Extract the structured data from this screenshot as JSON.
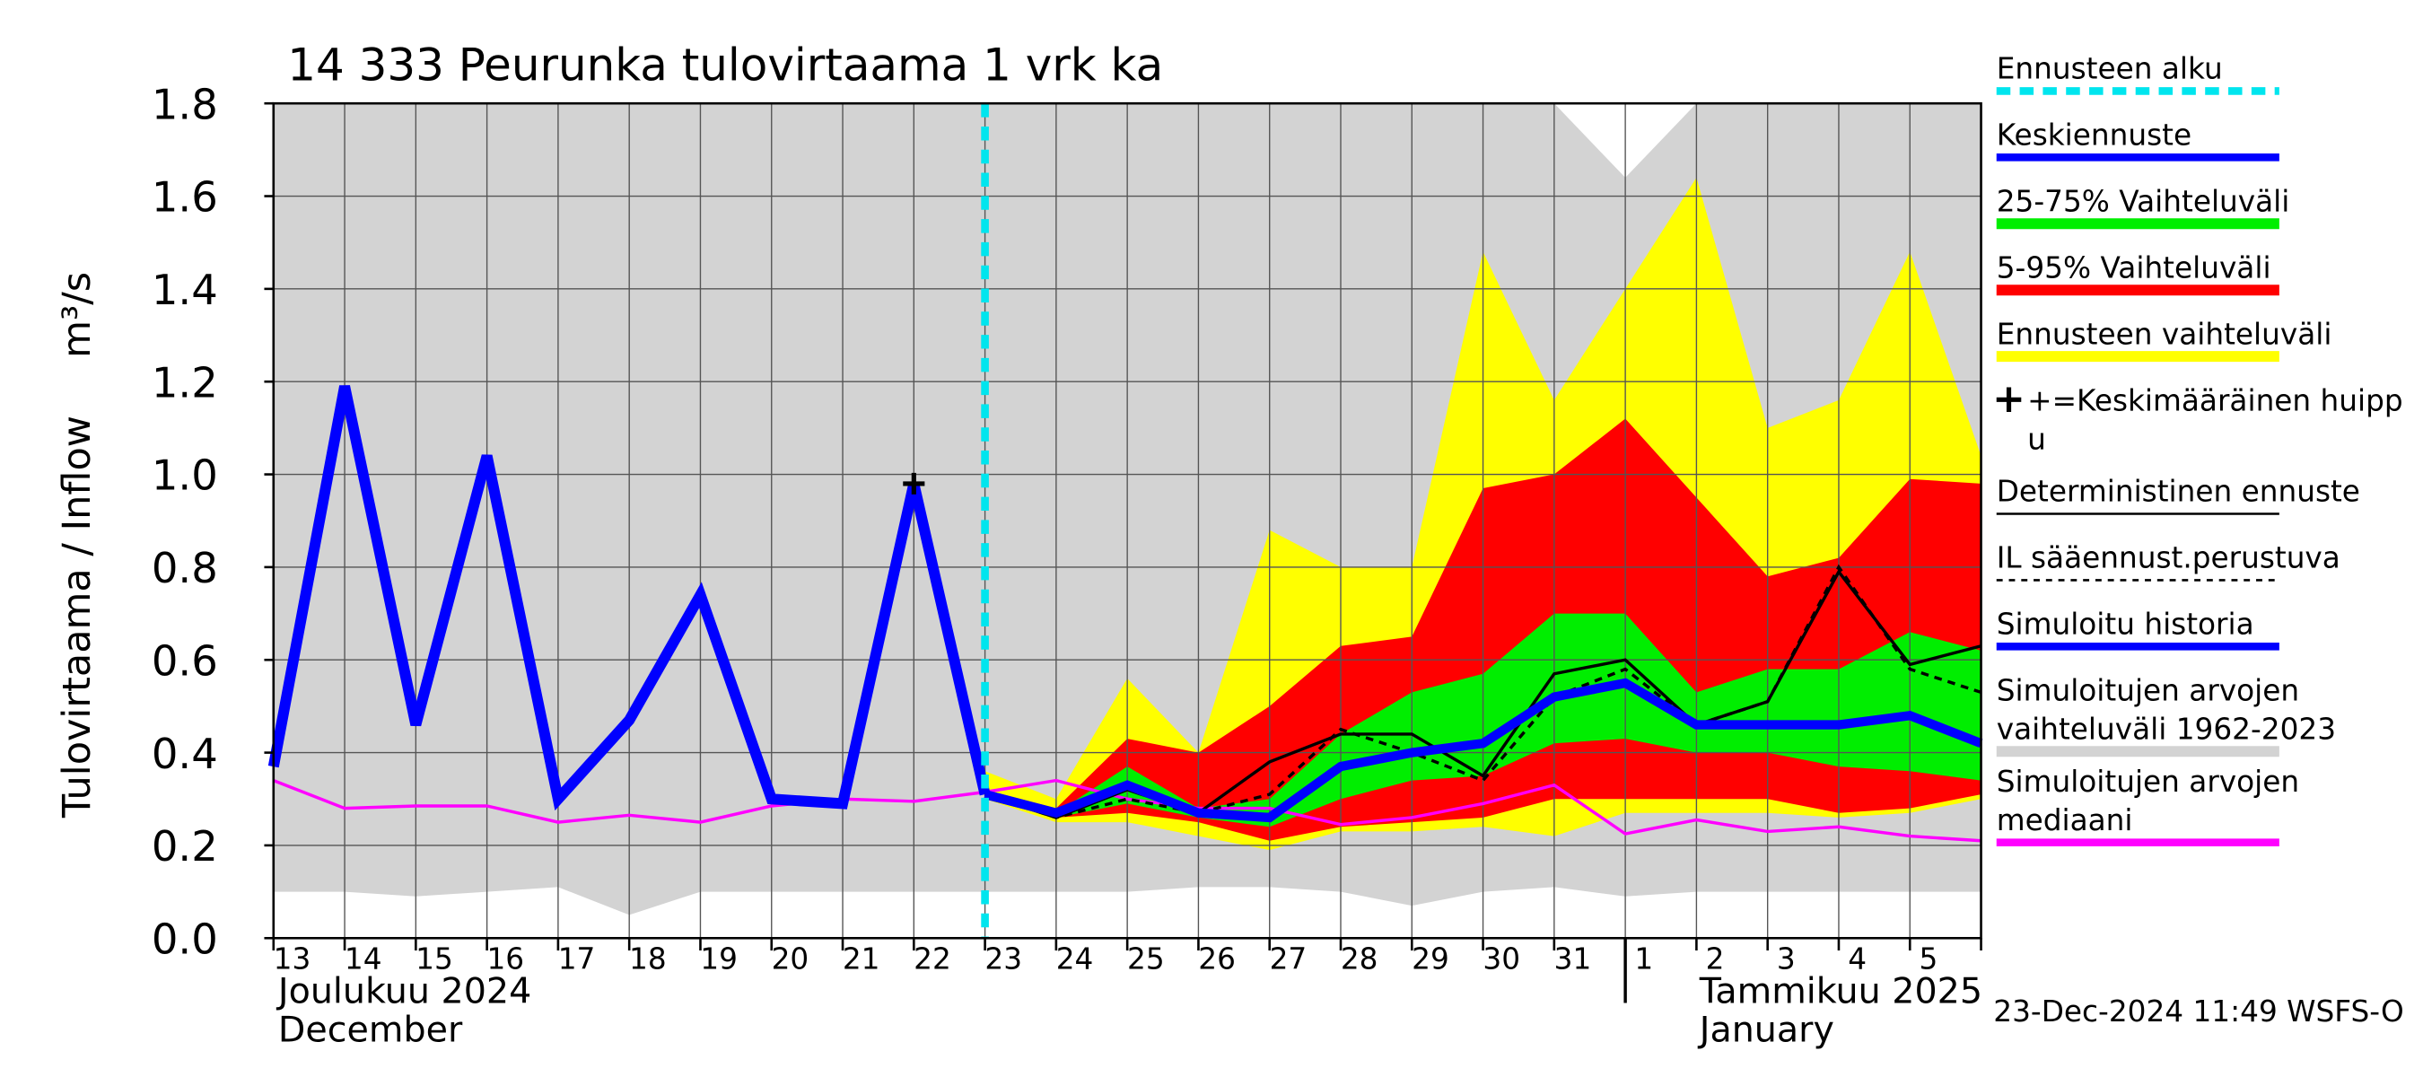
{
  "chart_data": {
    "type": "line",
    "title": "14 333 Peurunka tulovirtaama 1 vrk ka",
    "y_label": "Tulovirtaama / Inflow",
    "y_unit": "m³/s",
    "categories": [
      "13",
      "14",
      "15",
      "16",
      "17",
      "18",
      "19",
      "20",
      "21",
      "22",
      "23",
      "24",
      "25",
      "26",
      "27",
      "28",
      "29",
      "30",
      "31",
      "1",
      "2",
      "3",
      "4",
      "5",
      null
    ],
    "months": [
      {
        "index": 0,
        "lines": [
          "Joulukuu  2024",
          "December"
        ]
      },
      {
        "index": 19,
        "lines": [
          "Tammikuu  2025",
          "January"
        ]
      }
    ],
    "ylim": [
      0,
      1.8
    ],
    "yticks": [
      {
        "value": 0,
        "label": "0.0"
      },
      0.2,
      0.4,
      0.6,
      0.8,
      {
        "value": 1,
        "label": "1.0"
      },
      1.2,
      1.4,
      1.6,
      1.8
    ],
    "grid": true,
    "forecast_start": {
      "name": "Ennusteen alku",
      "index": 10,
      "color": "#00e5ee"
    },
    "series": [
      {
        "name": [
          "Keskiennuste"
        ],
        "kind": "line",
        "color": "#0000ff",
        "width": 6,
        "values": [
          null,
          null,
          null,
          null,
          null,
          null,
          null,
          null,
          null,
          null,
          0.31,
          0.27,
          0.33,
          0.27,
          0.26,
          0.37,
          0.4,
          0.42,
          0.52,
          0.55,
          0.46,
          0.46,
          0.46,
          0.48,
          0.42
        ]
      },
      {
        "name": [
          "25-75% Vaihteluväli"
        ],
        "kind": "band",
        "color": "#00ee00",
        "values": [
          null,
          null,
          null,
          null,
          null,
          null,
          null,
          null,
          null,
          null,
          0.31,
          0.27,
          0.37,
          0.28,
          0.3,
          0.44,
          0.53,
          0.57,
          0.7,
          0.7,
          0.53,
          0.58,
          0.58,
          0.66,
          0.62
        ],
        "low": [
          null,
          null,
          null,
          null,
          null,
          null,
          null,
          null,
          null,
          null,
          0.3,
          0.26,
          0.29,
          0.26,
          0.24,
          0.3,
          0.34,
          0.35,
          0.42,
          0.43,
          0.4,
          0.4,
          0.37,
          0.36,
          0.34
        ]
      },
      {
        "name": [
          "5-95% Vaihteluväli"
        ],
        "kind": "band",
        "color": "#ff0000",
        "values": [
          null,
          null,
          null,
          null,
          null,
          null,
          null,
          null,
          null,
          null,
          0.32,
          0.28,
          0.43,
          0.4,
          0.5,
          0.63,
          0.65,
          0.97,
          1.0,
          1.12,
          0.95,
          0.78,
          0.82,
          0.99,
          0.98
        ],
        "low": [
          null,
          null,
          null,
          null,
          null,
          null,
          null,
          null,
          null,
          null,
          0.3,
          0.26,
          0.27,
          0.25,
          0.21,
          0.24,
          0.25,
          0.26,
          0.3,
          0.3,
          0.3,
          0.3,
          0.27,
          0.28,
          0.31
        ]
      },
      {
        "name": [
          "Ennusteen vaihteluväli"
        ],
        "kind": "band",
        "color": "#ffff00",
        "values": [
          null,
          null,
          null,
          null,
          null,
          null,
          null,
          null,
          null,
          null,
          0.36,
          0.3,
          0.56,
          0.4,
          0.88,
          0.8,
          0.8,
          1.48,
          1.16,
          1.4,
          1.64,
          1.1,
          1.16,
          1.48,
          1.04
        ],
        "low": [
          null,
          null,
          null,
          null,
          null,
          null,
          null,
          null,
          null,
          null,
          0.3,
          0.25,
          0.25,
          0.22,
          0.19,
          0.23,
          0.23,
          0.24,
          0.22,
          0.27,
          0.27,
          0.27,
          0.26,
          0.27,
          0.3
        ]
      },
      {
        "name": [
          "+=Keskimääräinen huipp",
          "u"
        ],
        "kind": "peak",
        "color": "#000000",
        "values": [
          null,
          null,
          null,
          null,
          null,
          null,
          null,
          null,
          null,
          0.98,
          null,
          null,
          null,
          null,
          null,
          null,
          null,
          null,
          null,
          null,
          null,
          null,
          null,
          null,
          null
        ]
      },
      {
        "name": [
          "Deterministinen ennuste"
        ],
        "kind": "line",
        "color": "#000000",
        "width": 2,
        "values": [
          null,
          null,
          null,
          null,
          null,
          null,
          null,
          null,
          null,
          null,
          0.31,
          0.26,
          0.32,
          0.27,
          0.38,
          0.44,
          0.44,
          0.35,
          0.57,
          0.6,
          0.46,
          0.51,
          0.79,
          0.59,
          0.63
        ]
      },
      {
        "name": [
          "IL sääennust.perustuva"
        ],
        "kind": "line",
        "color": "#000000",
        "width": 2,
        "dashed": true,
        "values": [
          null,
          null,
          null,
          null,
          null,
          null,
          null,
          null,
          null,
          null,
          0.31,
          0.26,
          0.3,
          0.27,
          0.31,
          0.45,
          0.4,
          0.34,
          0.52,
          0.58,
          0.46,
          0.51,
          0.8,
          0.58,
          0.53
        ]
      },
      {
        "name": [
          "Simuloitu historia"
        ],
        "kind": "line",
        "color": "#0000ff",
        "width": 7,
        "values": [
          0.37,
          1.19,
          0.46,
          1.04,
          0.3,
          0.47,
          0.74,
          0.3,
          0.29,
          0.98,
          0.31,
          null,
          null,
          null,
          null,
          null,
          null,
          null,
          null,
          null,
          null,
          null,
          null,
          null,
          null
        ]
      },
      {
        "name": [
          "Simuloitujen arvojen",
          "vaihteluväli 1962-2023"
        ],
        "kind": "band",
        "color": "#d3d3d3",
        "values": [
          1.8,
          1.8,
          1.8,
          1.8,
          1.8,
          1.8,
          1.8,
          1.8,
          1.8,
          1.8,
          1.8,
          1.8,
          1.8,
          1.8,
          1.8,
          1.8,
          1.8,
          1.8,
          1.8,
          1.64,
          1.8,
          1.8,
          1.8,
          1.8,
          1.8
        ],
        "low": [
          0.1,
          0.1,
          0.09,
          0.1,
          0.11,
          0.05,
          0.1,
          0.1,
          0.1,
          0.1,
          0.1,
          0.1,
          0.1,
          0.11,
          0.11,
          0.1,
          0.07,
          0.1,
          0.11,
          0.09,
          0.1,
          0.1,
          0.1,
          0.1,
          0.1
        ]
      },
      {
        "name": [
          "Simuloitujen arvojen",
          "mediaani"
        ],
        "kind": "line",
        "color": "#ff00ff",
        "width": 2,
        "values": [
          0.34,
          0.28,
          0.285,
          0.285,
          0.25,
          0.265,
          0.25,
          0.285,
          0.3,
          0.295,
          0.315,
          0.34,
          0.3,
          0.28,
          0.28,
          0.245,
          0.26,
          0.29,
          0.33,
          0.225,
          0.255,
          0.23,
          0.24,
          0.22,
          0.21
        ]
      }
    ],
    "timestamp": "23-Dec-2024 11:49 WSFS-O"
  }
}
